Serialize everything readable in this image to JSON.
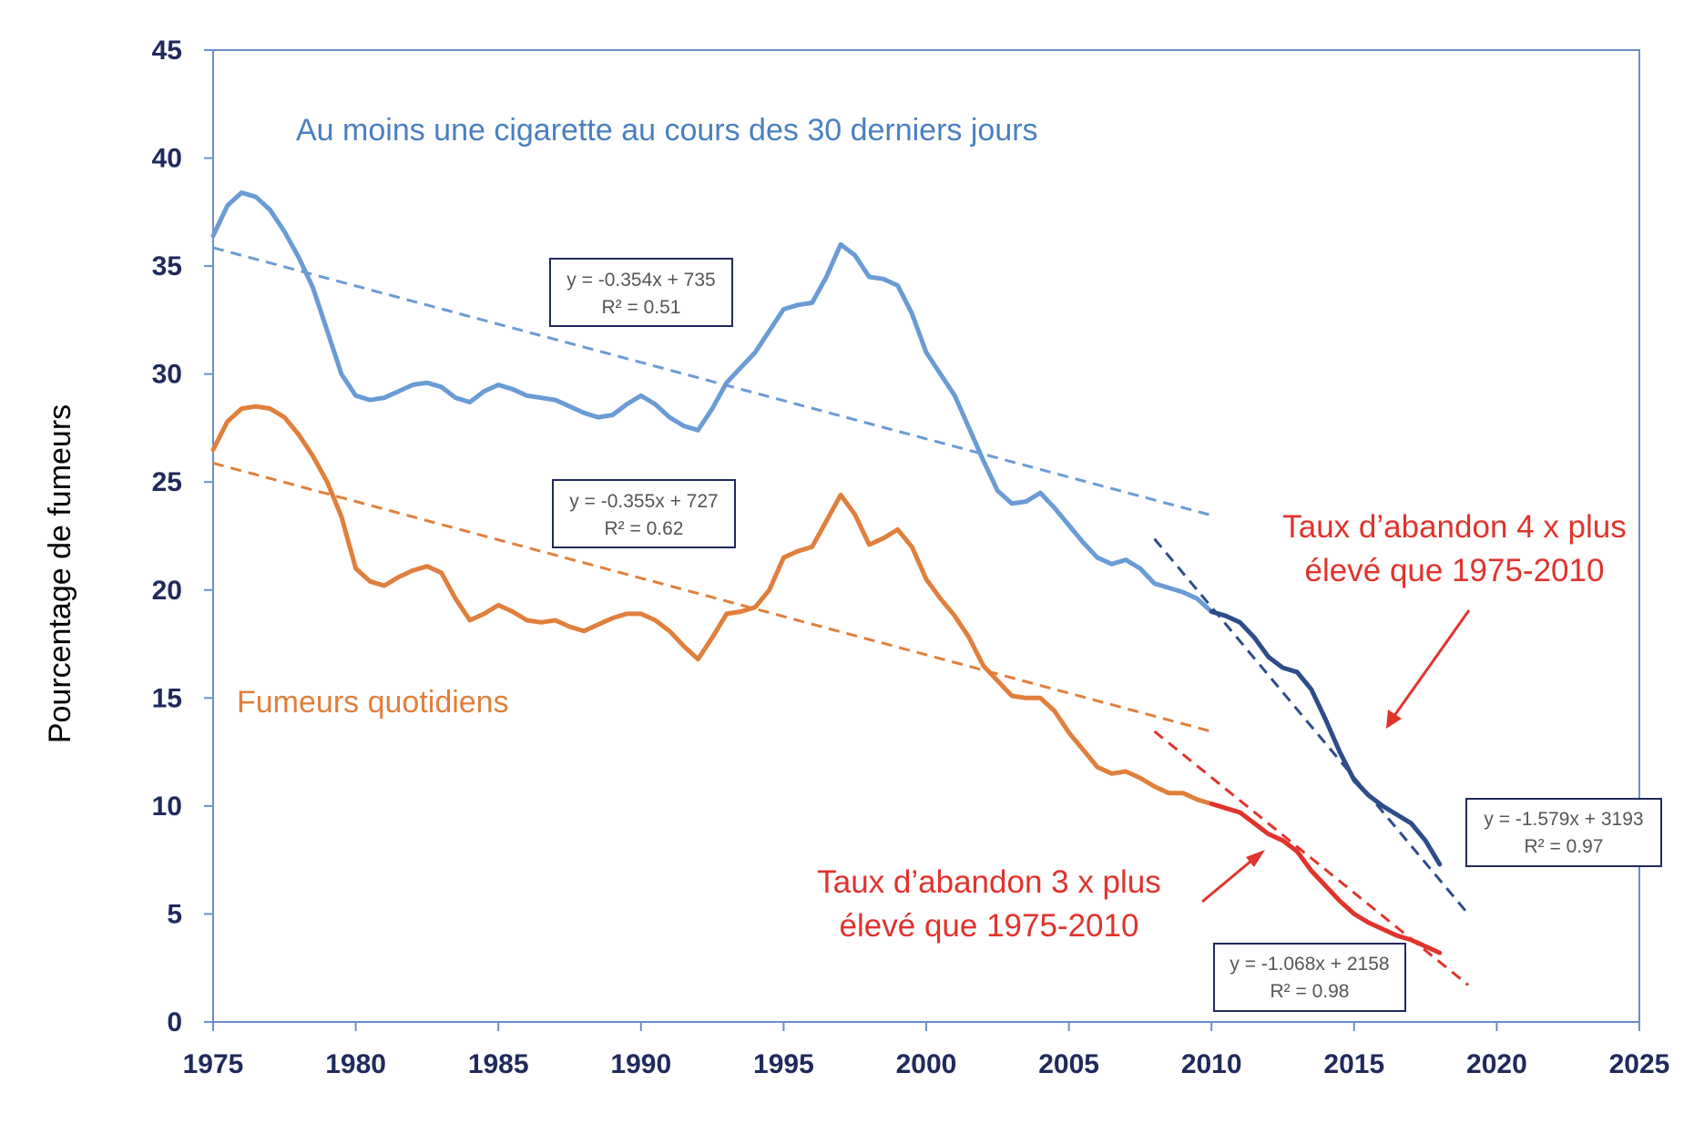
{
  "chart_data": {
    "type": "line",
    "ylabel": "Pourcentage de fumeurs",
    "xlim": [
      1975,
      2025
    ],
    "ylim": [
      0,
      45
    ],
    "x_ticks": [
      "1975",
      "1980",
      "1985",
      "1990",
      "1995",
      "2000",
      "2005",
      "2010",
      "2015",
      "2020",
      "2025"
    ],
    "y_ticks": [
      "0",
      "5",
      "10",
      "15",
      "20",
      "25",
      "30",
      "35",
      "40",
      "45"
    ],
    "grid": false,
    "colors": {
      "monthly": "#6a9bd4",
      "monthly_recent": "#2d4c8a",
      "daily": "#e07f3c",
      "daily_recent": "#e0332c",
      "notes": "#e0332c",
      "axes": "#6a8fc8"
    },
    "series": [
      {
        "name": "Au moins une cigarette au cours des 30 derniers jours",
        "x": [
          1975,
          1975.5,
          1976,
          1976.5,
          1977,
          1977.5,
          1978,
          1978.5,
          1979,
          1979.5,
          1980,
          1980.5,
          1981,
          1981.5,
          1982,
          1982.5,
          1983,
          1983.5,
          1984,
          1984.5,
          1985,
          1985.5,
          1986,
          1986.5,
          1987,
          1987.5,
          1988,
          1988.5,
          1989,
          1989.5,
          1990,
          1990.5,
          1991,
          1991.5,
          1992,
          1992.5,
          1993,
          1993.5,
          1994,
          1994.5,
          1995,
          1995.5,
          1996,
          1996.5,
          1997,
          1997.5,
          1998,
          1998.5,
          1999,
          1999.5,
          2000,
          2000.5,
          2001,
          2001.5,
          2002,
          2002.5,
          2003,
          2003.5,
          2004,
          2004.5,
          2005,
          2005.5,
          2006,
          2006.5,
          2007,
          2007.5,
          2008,
          2008.5,
          2009,
          2009.5,
          2010
        ],
        "y": [
          36.4,
          37.8,
          38.4,
          38.2,
          37.6,
          36.6,
          35.4,
          34,
          32,
          30,
          29,
          28.8,
          28.9,
          29.2,
          29.5,
          29.6,
          29.4,
          28.9,
          28.7,
          29.2,
          29.5,
          29.3,
          29.0,
          28.9,
          28.8,
          28.5,
          28.2,
          28.0,
          28.1,
          28.6,
          29.0,
          28.6,
          28.0,
          27.6,
          27.4,
          28.4,
          29.6,
          30.3,
          31.0,
          32.0,
          33.0,
          33.2,
          33.3,
          34.5,
          36.0,
          35.5,
          34.5,
          34.4,
          34.1,
          32.8,
          31.0,
          30.0,
          29.0,
          27.5,
          26.0,
          24.6,
          24.0,
          24.1,
          24.5,
          23.8,
          23.0,
          22.2,
          21.5,
          21.2,
          21.4,
          21.0,
          20.3,
          20.1,
          19.9,
          19.6,
          19.0
        ]
      },
      {
        "name": "Au moins une cigarette au cours des 30 derniers jours",
        "x": [
          2010,
          2010.5,
          2011,
          2011.5,
          2012,
          2012.5,
          2013,
          2013.5,
          2014,
          2014.5,
          2015,
          2015.5,
          2016,
          2016.5,
          2017,
          2017.5,
          2018
        ],
        "y": [
          19.0,
          18.8,
          18.5,
          17.8,
          16.9,
          16.4,
          16.2,
          15.4,
          14.0,
          12.5,
          11.2,
          10.5,
          10.0,
          9.6,
          9.2,
          8.4,
          7.3
        ]
      },
      {
        "name": "Fumeurs quotidiens",
        "x": [
          1975,
          1975.5,
          1976,
          1976.5,
          1977,
          1977.5,
          1978,
          1978.5,
          1979,
          1979.5,
          1980,
          1980.5,
          1981,
          1981.5,
          1982,
          1982.5,
          1983,
          1983.5,
          1984,
          1984.5,
          1985,
          1985.5,
          1986,
          1986.5,
          1987,
          1987.5,
          1988,
          1988.5,
          1989,
          1989.5,
          1990,
          1990.5,
          1991,
          1991.5,
          1992,
          1992.5,
          1993,
          1993.5,
          1994,
          1994.5,
          1995,
          1995.5,
          1996,
          1996.5,
          1997,
          1997.5,
          1998,
          1998.5,
          1999,
          1999.5,
          2000,
          2000.5,
          2001,
          2001.5,
          2002,
          2002.5,
          2003,
          2003.5,
          2004,
          2004.5,
          2005,
          2005.5,
          2006,
          2006.5,
          2007,
          2007.5,
          2008,
          2008.5,
          2009,
          2009.5,
          2010
        ],
        "y": [
          26.5,
          27.8,
          28.4,
          28.5,
          28.4,
          28.0,
          27.2,
          26.2,
          25.0,
          23.4,
          21.0,
          20.4,
          20.2,
          20.6,
          20.9,
          21.1,
          20.8,
          19.6,
          18.6,
          18.9,
          19.3,
          19.0,
          18.6,
          18.5,
          18.6,
          18.3,
          18.1,
          18.4,
          18.7,
          18.9,
          18.9,
          18.6,
          18.1,
          17.4,
          16.8,
          17.8,
          18.9,
          19.0,
          19.2,
          20.0,
          21.5,
          21.8,
          22.0,
          23.2,
          24.4,
          23.5,
          22.1,
          22.4,
          22.8,
          22.0,
          20.5,
          19.6,
          18.8,
          17.8,
          16.5,
          15.8,
          15.1,
          15.0,
          15.0,
          14.4,
          13.4,
          12.6,
          11.8,
          11.5,
          11.6,
          11.3,
          10.9,
          10.6,
          10.6,
          10.3,
          10.1
        ]
      },
      {
        "name": "Fumeurs quotidiens",
        "x": [
          2010,
          2010.5,
          2011,
          2011.5,
          2012,
          2012.5,
          2013,
          2013.5,
          2014,
          2014.5,
          2015,
          2015.5,
          2016,
          2016.5,
          2017,
          2017.5,
          2018
        ],
        "y": [
          10.1,
          9.9,
          9.7,
          9.2,
          8.7,
          8.4,
          7.9,
          7.0,
          6.3,
          5.6,
          5.0,
          4.6,
          4.3,
          4.0,
          3.8,
          3.5,
          3.2
        ]
      }
    ],
    "trendlines": [
      {
        "equation": "y = -0.354x + 735",
        "r2": "R² = 0.51",
        "slope": -0.354,
        "intercept": 735,
        "x_range": [
          1975,
          2010
        ],
        "color": "#6a9bd4"
      },
      {
        "equation": "y = -0.355x + 727",
        "r2": "R² = 0.62",
        "slope": -0.355,
        "intercept": 727,
        "x_range": [
          1975,
          2010
        ],
        "color": "#e07f3c"
      },
      {
        "equation": "y = -1.579x + 3193",
        "r2": "R² = 0.97",
        "slope": -1.579,
        "intercept": 3193,
        "x_range": [
          2008,
          2019
        ],
        "color": "#2d4c8a"
      },
      {
        "equation": "y = -1.068x + 2158",
        "r2": "R² = 0.98",
        "slope": -1.068,
        "intercept": 2158,
        "x_range": [
          2008,
          2019
        ],
        "color": "#e0332c"
      }
    ],
    "annotations": {
      "monthly_label": "Au moins une cigarette au cours des 30 derniers jours",
      "daily_label": "Fumeurs quotidiens",
      "note_monthly": [
        "Taux d’abandon 4 x plus",
        "élevé que 1975-2010"
      ],
      "note_daily": [
        "Taux d’abandon 3 x plus",
        "élevé que 1975-2010"
      ]
    }
  }
}
